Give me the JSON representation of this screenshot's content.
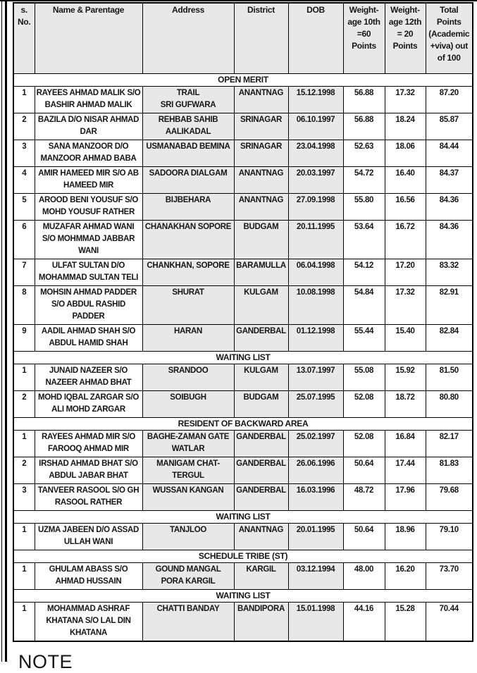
{
  "page": {
    "note_label": "NOTE"
  },
  "colors": {
    "header_bg": "#e8e8e8",
    "shaded_cell_bg": "#e8e8e8",
    "border": "#000000",
    "text": "#161616"
  },
  "table": {
    "headers": [
      {
        "key": "sno",
        "text": "s.\nNo."
      },
      {
        "key": "name",
        "text": "Name & Parentage"
      },
      {
        "key": "address",
        "text": "Address"
      },
      {
        "key": "district",
        "text": "District"
      },
      {
        "key": "dob",
        "text": "DOB"
      },
      {
        "key": "w10",
        "text": "Weight-\nage 10th\n=60\nPoints"
      },
      {
        "key": "w12",
        "text": "Weight-\nage 12th\n= 20\nPoints"
      },
      {
        "key": "total",
        "text": "Total\nPoints\n(Academic\n+viva) out\nof 100"
      }
    ],
    "sections": [
      {
        "title": "OPEN MERIT",
        "rows": [
          {
            "sno": "1",
            "name": "RAYEES AHMAD MALIK S/O\nBASHIR AHMAD MALIK",
            "address": "TRAIL\nSRI GUFWARA",
            "district": "ANANTNAG",
            "dob": "15.12.1998",
            "w10": "56.88",
            "w12": "17.32",
            "total": "87.20"
          },
          {
            "sno": "2",
            "name": "BAZILA D/O NISAR AHMAD\nDAR",
            "address": "REHBAB SAHIB\nAALIKADAL",
            "district": "SRINAGAR",
            "dob": "06.10.1997",
            "w10": "56.88",
            "w12": "18.24",
            "total": "85.87"
          },
          {
            "sno": "3",
            "name": "SANA MANZOOR D/O\nMANZOOR AHMAD BABA",
            "address": "USMANABAD BEMINA",
            "district": "SRINAGAR",
            "dob": "23.04.1998",
            "w10": "52.63",
            "w12": "18.06",
            "total": "84.44"
          },
          {
            "sno": "4",
            "name": "AMIR HAMEED MIR S/O AB\nHAMEED MIR",
            "address": "SADOORA DIALGAM",
            "district": "ANANTNAG",
            "dob": "20.03.1997",
            "w10": "54.72",
            "w12": "16.40",
            "total": "84.37"
          },
          {
            "sno": "5",
            "name": "AROOD BENI YOUSUF S/O\nMOHD YOUSUF RATHER",
            "address": "BIJBEHARA",
            "district": "ANANTNAG",
            "dob": "27.09.1998",
            "w10": "55.80",
            "w12": "16.56",
            "total": "84.36"
          },
          {
            "sno": "6",
            "name": "MUZAFAR AHMAD WANI\nS/O MOHMMAD JABBAR\nWANI",
            "address": "CHANAKHAN SOPORE",
            "district": "BUDGAM",
            "dob": "20.11.1995",
            "w10": "53.64",
            "w12": "16.72",
            "total": "84.36"
          },
          {
            "sno": "7",
            "name": "ULFAT SULTAN D/O\nMOHAMMAD SULTAN TELI",
            "address": "CHANKHAN, SOPORE",
            "district": "BARAMULLA",
            "dob": "06.04.1998",
            "w10": "54.12",
            "w12": "17.20",
            "total": "83.32"
          },
          {
            "sno": "8",
            "name": "MOHSIN AHMAD PADDER\nS/O ABDUL RASHID\nPADDER",
            "address": "SHURAT",
            "district": "KULGAM",
            "dob": "10.08.1998",
            "w10": "54.84",
            "w12": "17.32",
            "total": "82.91"
          },
          {
            "sno": "9",
            "name": "AADIL AHMAD SHAH S/O\nABDUL HAMID SHAH",
            "address": "HARAN",
            "district": "GANDERBAL",
            "dob": "01.12.1998",
            "w10": "55.44",
            "w12": "15.40",
            "total": "82.84"
          }
        ]
      },
      {
        "title": "WAITING LIST",
        "rows": [
          {
            "sno": "1",
            "name": "JUNAID NAZEER S/O\nNAZEER AHMAD BHAT",
            "address": "SRANDOO",
            "district": "KULGAM",
            "dob": "13.07.1997",
            "w10": "55.08",
            "w12": "15.92",
            "total": "81.50"
          },
          {
            "sno": "2",
            "name": "MOHD IQBAL ZARGAR S/O\nALI MOHD ZARGAR",
            "address": "SOIBUGH",
            "district": "BUDGAM",
            "dob": "25.07.1995",
            "w10": "52.08",
            "w12": "18.72",
            "total": "80.80"
          }
        ]
      },
      {
        "title": "RESIDENT OF BACKWARD AREA",
        "rows": [
          {
            "sno": "1",
            "name": "RAYEES AHMAD MIR S/O\nFAROOQ AHMAD MIR",
            "address": "BAGHE-ZAMAN GATE\nWATLAR",
            "district": "GANDERBAL",
            "dob": "25.02.1997",
            "w10": "52.08",
            "w12": "16.84",
            "total": "82.17"
          },
          {
            "sno": "2",
            "name": "IRSHAD AHMAD BHAT S/O\nABDUL JABAR BHAT",
            "address": "MANIGAM CHAT-\nTERGUL",
            "district": "GANDERBAL",
            "dob": "26.06.1996",
            "w10": "50.64",
            "w12": "17.44",
            "total": "81.83"
          },
          {
            "sno": "3",
            "name": "TANVEER RASOOL S/O GH\nRASOOL RATHER",
            "address": "WUSSAN KANGAN",
            "district": "GANDERBAL",
            "dob": "16.03.1996",
            "w10": "48.72",
            "w12": "17.96",
            "total": "79.68"
          }
        ]
      },
      {
        "title": "WAITING LIST",
        "rows": [
          {
            "sno": "1",
            "name": "UZMA JABEEN D/O ASSAD\nULLAH WANI",
            "address": "TANJLOO",
            "district": "ANANTNAG",
            "dob": "20.01.1995",
            "w10": "50.64",
            "w12": "18.96",
            "total": "79.10"
          }
        ]
      },
      {
        "title": "SCHEDULE TRIBE (ST)",
        "rows": [
          {
            "sno": "1",
            "name": "GHULAM ABASS S/O\nAHMAD HUSSAIN",
            "address": "GOUND MANGAL\nPORA KARGIL",
            "district": "KARGIL",
            "dob": "03.12.1994",
            "w10": "48.00",
            "w12": "16.20",
            "total": "73.70"
          }
        ]
      },
      {
        "title": "WAITING LIST",
        "rows": [
          {
            "sno": "1",
            "name": "MOHAMMAD ASHRAF\nKHATANA S/O LAL DIN\nKHATANA",
            "address": "CHATTI BANDAY",
            "district": "BANDIPORA",
            "dob": "15.01.1998",
            "w10": "44.16",
            "w12": "15.28",
            "total": "70.44"
          }
        ]
      }
    ]
  }
}
